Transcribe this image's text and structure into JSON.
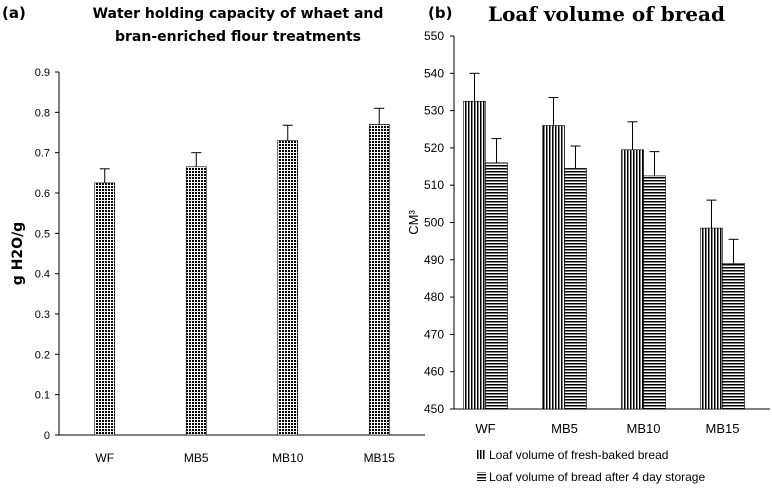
{
  "chart_data": [
    {
      "panel_label": "(a)",
      "type": "bar",
      "title": [
        "Water holding capacity of whaet and",
        "bran-enriched flour treatments"
      ],
      "xlabel": "",
      "ylabel": "g H2O/g",
      "ylim": [
        0,
        0.9
      ],
      "yticks": [
        "0",
        "0.1",
        "0.2",
        "0.3",
        "0.4",
        "0.5",
        "0.6",
        "0.7",
        "0.8",
        "0.9"
      ],
      "categories": [
        "WF",
        "MB5",
        "MB10",
        "MB15"
      ],
      "values": [
        0.625,
        0.665,
        0.73,
        0.77
      ],
      "errors": [
        0.035,
        0.035,
        0.038,
        0.04
      ],
      "pattern": "dots",
      "grid": false
    },
    {
      "panel_label": "(b)",
      "type": "bar",
      "title": "Loaf volume of bread",
      "xlabel": "",
      "ylabel": "CM³",
      "ylim": [
        450,
        550
      ],
      "yticks": [
        "450",
        "460",
        "470",
        "480",
        "490",
        "500",
        "510",
        "520",
        "530",
        "540",
        "550"
      ],
      "categories": [
        "WF",
        "MB5",
        "MB10",
        "MB15"
      ],
      "series": [
        {
          "name": "Loaf volume of fresh-baked bread",
          "values": [
            532.5,
            526,
            519.5,
            498.5
          ],
          "errors": [
            7.5,
            7.5,
            7.5,
            7.5
          ],
          "pattern": "vertical-lines"
        },
        {
          "name": "Loaf volume of bread after 4 day storage",
          "values": [
            516,
            514.5,
            512.5,
            489
          ],
          "errors": [
            6.5,
            6,
            6.5,
            6.5
          ],
          "pattern": "horizontal-lines"
        }
      ],
      "legend_position": "bottom",
      "grid": false
    }
  ]
}
